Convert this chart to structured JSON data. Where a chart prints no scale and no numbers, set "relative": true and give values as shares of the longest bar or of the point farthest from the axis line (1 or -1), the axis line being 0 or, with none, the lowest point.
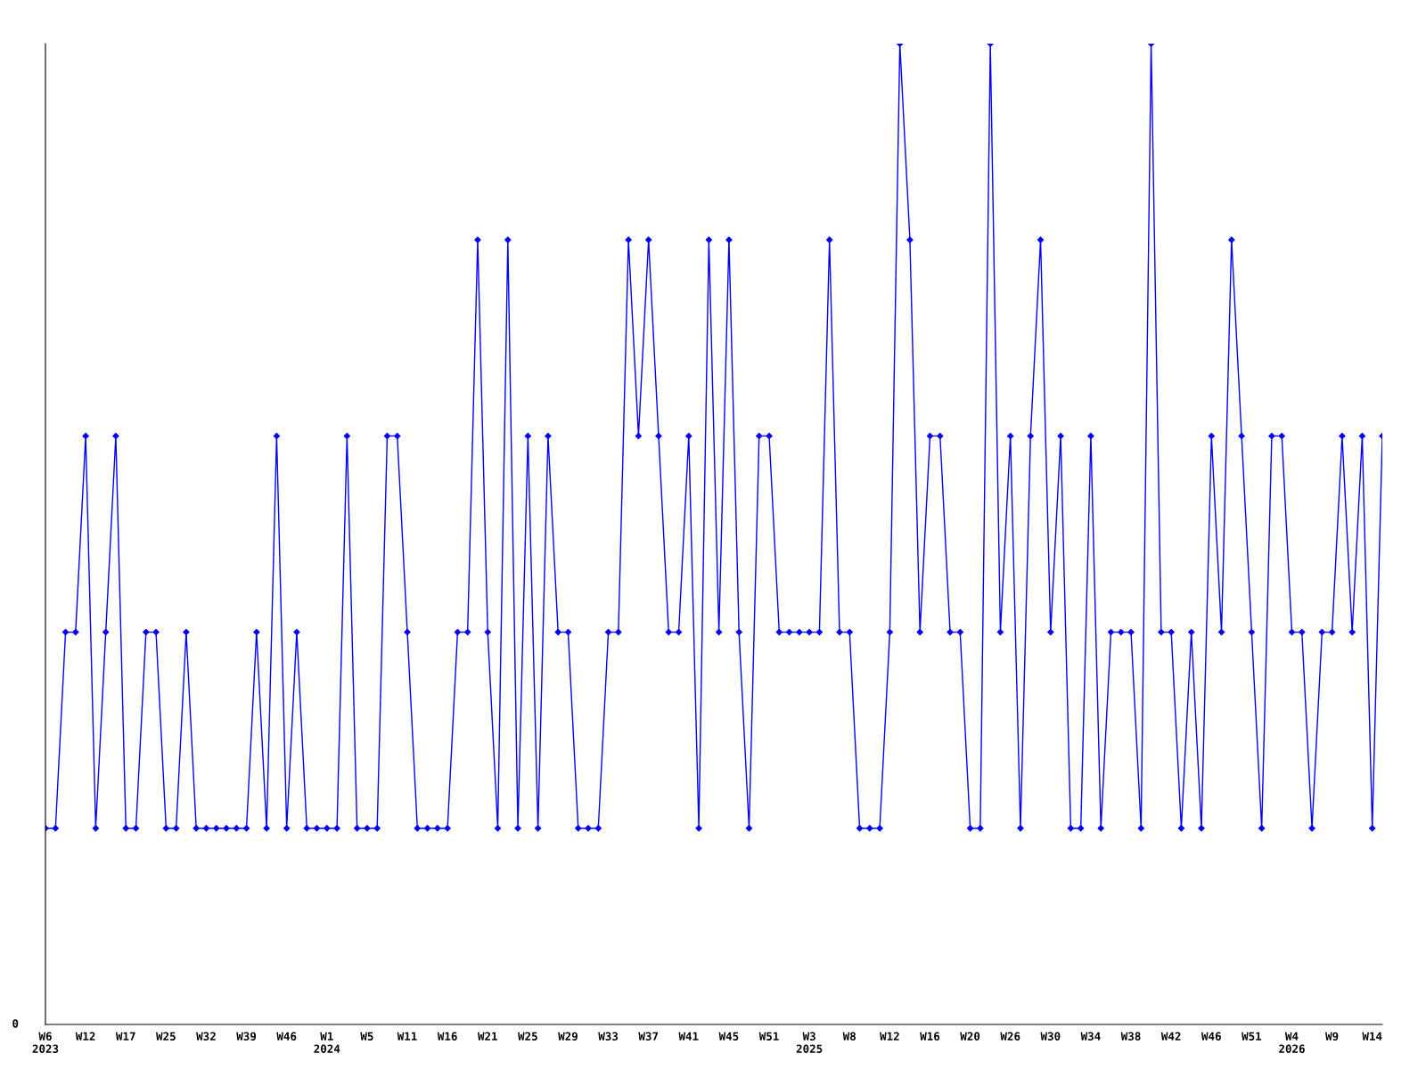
{
  "chart_data": {
    "type": "line",
    "relative": true,
    "marker": "diamond",
    "line_style": "solid",
    "categories": [
      "W6\n2023",
      null,
      null,
      null,
      "W12",
      null,
      null,
      null,
      "W17",
      null,
      null,
      null,
      "W25",
      null,
      null,
      null,
      "W32",
      null,
      null,
      null,
      "W39",
      null,
      null,
      null,
      "W46",
      null,
      null,
      null,
      "W1\n2024",
      null,
      null,
      null,
      "W5",
      null,
      null,
      null,
      "W11",
      null,
      null,
      null,
      "W16",
      null,
      null,
      null,
      "W21",
      null,
      null,
      null,
      "W25",
      null,
      null,
      null,
      "W29",
      null,
      null,
      null,
      "W33",
      null,
      null,
      null,
      "W37",
      null,
      null,
      null,
      "W41",
      null,
      null,
      null,
      "W45",
      null,
      null,
      null,
      "W51",
      null,
      null,
      null,
      "W3\n2025",
      null,
      null,
      null,
      "W8",
      null,
      null,
      null,
      "W12",
      null,
      null,
      null,
      "W16",
      null,
      null,
      null,
      "W20",
      null,
      null,
      null,
      "W26",
      null,
      null,
      null,
      "W30",
      null,
      null,
      null,
      "W34",
      null,
      null,
      null,
      "W38",
      null,
      null,
      null,
      "W42",
      null,
      null,
      null,
      "W46",
      null,
      null,
      null,
      "W51",
      null,
      null,
      null,
      "W4\n2026",
      null,
      null,
      null,
      "W9",
      null,
      null,
      null,
      "W14",
      null
    ],
    "series": [
      {
        "color": "#0000ff",
        "values": [
          0.2,
          0.2,
          0.4,
          0.4,
          0.6,
          0.2,
          0.4,
          0.6,
          0.2,
          0.2,
          0.4,
          0.4,
          0.2,
          0.2,
          0.4,
          0.2,
          0.2,
          0.2,
          0.2,
          0.2,
          0.2,
          0.4,
          0.2,
          0.6,
          0.2,
          0.4,
          0.2,
          0.2,
          0.2,
          0.2,
          0.6,
          0.2,
          0.2,
          0.2,
          0.6,
          0.6,
          0.4,
          0.2,
          0.2,
          0.2,
          0.2,
          0.4,
          0.4,
          0.8,
          0.4,
          0.2,
          0.8,
          0.2,
          0.6,
          0.2,
          0.6,
          0.4,
          0.4,
          0.2,
          0.2,
          0.2,
          0.4,
          0.4,
          0.8,
          0.6,
          0.8,
          0.6,
          0.4,
          0.4,
          0.6,
          0.2,
          0.8,
          0.4,
          0.8,
          0.4,
          0.2,
          0.6,
          0.6,
          0.4,
          0.4,
          0.4,
          0.4,
          0.4,
          0.8,
          0.4,
          0.4,
          0.2,
          0.2,
          0.2,
          0.4,
          1,
          0.8,
          0.4,
          0.6,
          0.6,
          0.4,
          0.4,
          0.2,
          0.2,
          1,
          0.4,
          0.6,
          0.2,
          0.6,
          0.8,
          0.4,
          0.6,
          0.2,
          0.2,
          0.6,
          0.2,
          0.4,
          0.4,
          0.4,
          0.2,
          1,
          0.4,
          0.4,
          0.2,
          0.4,
          0.2,
          0.6,
          0.4,
          0.8,
          0.6,
          0.4,
          0.2,
          0.6,
          0.6,
          0.4,
          0.4,
          0.2,
          0.4,
          0.4,
          0.6,
          0.4,
          0.6,
          0.2,
          0.6
        ]
      }
    ],
    "annotations": [
      "0"
    ]
  }
}
